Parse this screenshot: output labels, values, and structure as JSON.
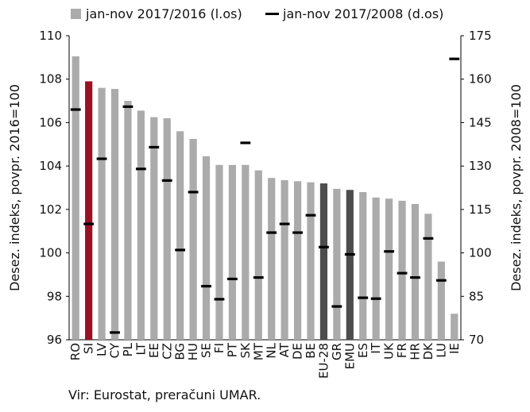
{
  "chart_data": {
    "type": "bar",
    "categories": [
      "RO",
      "SI",
      "LV",
      "CY",
      "PL",
      "LT",
      "EE",
      "CZ",
      "BG",
      "HU",
      "SE",
      "FI",
      "PT",
      "SK",
      "MT",
      "NL",
      "AT",
      "DE",
      "BE",
      "EU-28",
      "GR",
      "EMU",
      "ES",
      "IT",
      "UK",
      "FR",
      "HR",
      "DK",
      "LU",
      "IE"
    ],
    "series": [
      {
        "name": "jan-nov 2017/2016 (l.os)",
        "type": "bar",
        "axis": "left",
        "values": [
          109.05,
          107.9,
          107.6,
          107.55,
          107.0,
          106.55,
          106.25,
          106.2,
          105.6,
          105.25,
          104.45,
          104.05,
          104.05,
          104.05,
          103.8,
          103.45,
          103.35,
          103.3,
          103.25,
          103.2,
          102.95,
          102.9,
          102.8,
          102.55,
          102.5,
          102.4,
          102.25,
          101.8,
          99.6,
          97.2
        ]
      },
      {
        "name": "jan-nov 2017/2008 (d.os)",
        "type": "marker",
        "axis": "right",
        "values": [
          149.5,
          110,
          132.5,
          72.5,
          150.5,
          129,
          136.5,
          125,
          101,
          121,
          88.5,
          84,
          91,
          138,
          91.5,
          107,
          110,
          107,
          113,
          102,
          81.5,
          99.5,
          84.5,
          84.2,
          100.5,
          93,
          91.5,
          105,
          90.5,
          167
        ]
      }
    ],
    "highlight_colors": {
      "SI": "#9b1022",
      "EU-28": "#4d4d4d",
      "EMU": "#4d4d4d"
    },
    "colors": {
      "bar": "#ababab",
      "marker": "#000000"
    },
    "ylabel": "Desez. indeks, povpr. 2016=100",
    "ylabel_right": "Desez. indeks, povpr. 2008=100",
    "ylim": [
      96,
      110
    ],
    "ylim_right": [
      70,
      175
    ],
    "yticks": [
      96,
      98,
      100,
      102,
      104,
      106,
      108,
      110
    ],
    "yticks_right": [
      70,
      85,
      100,
      115,
      130,
      145,
      160,
      175
    ],
    "grid": false,
    "legend": "top"
  },
  "source": "Vir: Eurostat, preračuni UMAR."
}
